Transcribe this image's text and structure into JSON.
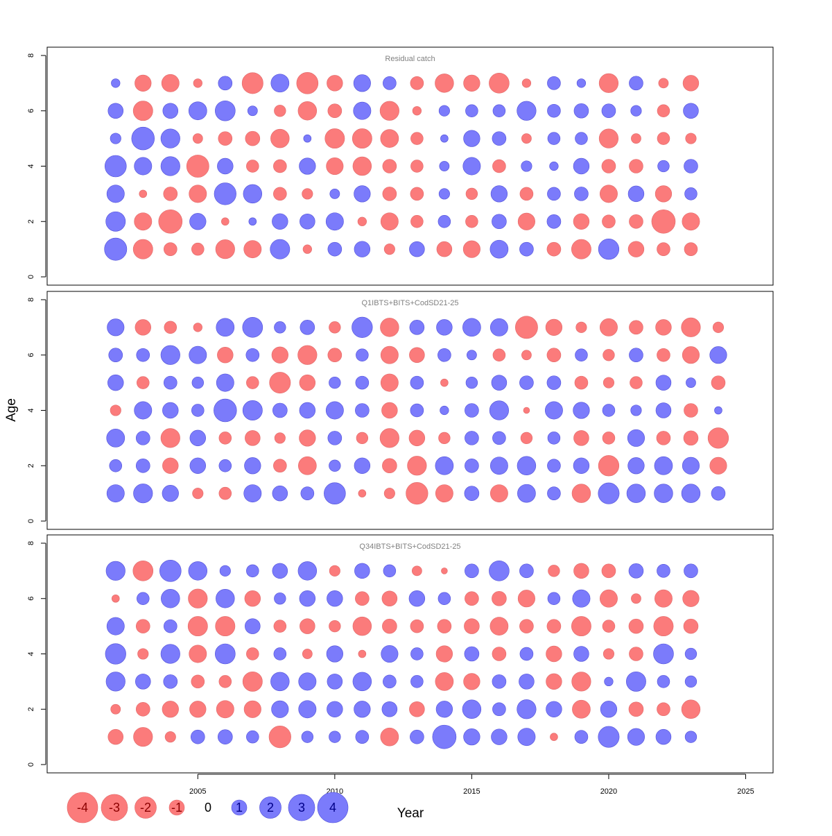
{
  "chart_data": {
    "type": "bubble",
    "xlabel": "Year",
    "ylabel": "Age",
    "xlim": [
      1999.5,
      2026
    ],
    "ylim": [
      -0.3,
      8.3
    ],
    "x_ticks": [
      2005,
      2010,
      2015,
      2020,
      2025
    ],
    "y_ticks": [
      0,
      2,
      4,
      6,
      8
    ],
    "colors": {
      "positive": "#7b7bfb",
      "negative": "#fb7b7b"
    },
    "grid": false,
    "panels": [
      {
        "title": "Residual catch",
        "years": [
          2002,
          2003,
          2004,
          2005,
          2006,
          2007,
          2008,
          2009,
          2010,
          2011,
          2012,
          2013,
          2014,
          2015,
          2016,
          2017,
          2018,
          2019,
          2020,
          2021,
          2022,
          2023
        ],
        "ages": [
          1,
          2,
          3,
          4,
          5,
          6,
          7
        ],
        "residuals": [
          [
            2.6,
            2.0,
            1.6,
            2.4,
            0.6,
            1.2,
            0.4
          ],
          [
            -2.0,
            -1.6,
            -0.3,
            1.6,
            2.7,
            -2.0,
            -1.4
          ],
          [
            -0.9,
            -2.9,
            -1.0,
            1.9,
            1.9,
            1.2,
            -1.6
          ],
          [
            -0.8,
            1.4,
            -1.6,
            -2.6,
            -0.5,
            1.7,
            -0.4
          ],
          [
            -1.9,
            -0.3,
            2.5,
            1.3,
            -1.0,
            2.1,
            1.0
          ],
          [
            -1.6,
            0.3,
            1.8,
            -0.8,
            -1.1,
            0.5,
            -2.3
          ],
          [
            2.0,
            1.3,
            -0.9,
            -0.9,
            -1.8,
            -0.7,
            1.7
          ],
          [
            -0.4,
            1.2,
            -0.6,
            1.4,
            0.3,
            -1.8,
            -2.4
          ],
          [
            1.0,
            1.6,
            0.5,
            -1.5,
            -2.0,
            -1.0,
            -1.3
          ],
          [
            1.3,
            -0.4,
            1.4,
            -1.8,
            -2.0,
            1.6,
            1.5
          ],
          [
            -0.6,
            -1.6,
            -1.0,
            -1.0,
            -1.7,
            -1.9,
            0.9
          ],
          [
            1.2,
            -0.8,
            -0.9,
            -0.8,
            -0.8,
            -0.4,
            -0.9
          ],
          [
            -1.2,
            0.8,
            0.6,
            0.5,
            0.3,
            0.6,
            -1.8
          ],
          [
            -1.5,
            -0.8,
            -0.7,
            1.6,
            1.4,
            0.8,
            -1.4
          ],
          [
            1.7,
            1.1,
            1.4,
            -0.9,
            1.0,
            0.8,
            -2.1
          ],
          [
            1.0,
            -1.5,
            -0.9,
            0.6,
            -0.5,
            1.9,
            -0.4
          ],
          [
            -1.0,
            1.0,
            0.9,
            0.4,
            0.8,
            0.9,
            0.9
          ],
          [
            -2.0,
            -1.3,
            1.0,
            1.3,
            0.8,
            1.1,
            0.4
          ],
          [
            2.2,
            -0.9,
            -1.6,
            -1.0,
            -1.9,
            1.0,
            -1.9
          ],
          [
            -1.3,
            -1.0,
            1.3,
            -1.0,
            -0.5,
            0.6,
            1.0
          ],
          [
            -0.9,
            -2.9,
            -1.4,
            0.7,
            -0.8,
            -0.8,
            -0.5
          ],
          [
            -0.9,
            -1.6,
            0.8,
            1.0,
            -0.6,
            1.2,
            -1.3
          ]
        ]
      },
      {
        "title": "Q1IBTS+BITS+CodSD21-25",
        "years": [
          2002,
          2003,
          2004,
          2005,
          2006,
          2007,
          2008,
          2009,
          2010,
          2011,
          2012,
          2013,
          2014,
          2015,
          2016,
          2017,
          2018,
          2019,
          2020,
          2021,
          2022,
          2023,
          2024
        ],
        "ages": [
          1,
          2,
          3,
          4,
          5,
          6,
          7
        ],
        "residuals": [
          [
            1.6,
            0.8,
            1.7,
            -0.6,
            1.3,
            1.0,
            1.5
          ],
          [
            1.9,
            1.0,
            1.0,
            1.6,
            -0.8,
            0.9,
            -1.3
          ],
          [
            1.4,
            -1.3,
            -1.9,
            1.3,
            0.9,
            1.9,
            -0.8
          ],
          [
            -0.6,
            1.3,
            1.3,
            0.8,
            0.7,
            1.6,
            -0.4
          ],
          [
            -0.8,
            0.8,
            -0.8,
            2.7,
            1.6,
            -1.3,
            1.7
          ],
          [
            1.6,
            1.4,
            -1.2,
            2.0,
            -0.8,
            0.9,
            2.1
          ],
          [
            1.2,
            -0.9,
            -0.6,
            1.1,
            -2.3,
            -1.4,
            0.7
          ],
          [
            0.9,
            -1.7,
            -1.4,
            1.3,
            -1.3,
            -1.9,
            1.1
          ],
          [
            2.4,
            0.7,
            1.0,
            1.6,
            0.7,
            -1.0,
            -0.7
          ],
          [
            -0.3,
            1.3,
            -0.7,
            1.0,
            0.9,
            0.8,
            2.2
          ],
          [
            -0.6,
            -1.1,
            -1.9,
            -1.3,
            -1.6,
            -1.6,
            -1.8
          ],
          [
            -2.5,
            -1.9,
            -1.3,
            0.9,
            0.9,
            -1.2,
            1.1
          ],
          [
            -1.6,
            1.7,
            -0.7,
            0.4,
            -0.3,
            0.9,
            1.3
          ],
          [
            1.1,
            1.0,
            1.0,
            1.0,
            0.7,
            0.5,
            1.7
          ],
          [
            -1.6,
            1.6,
            0.9,
            1.9,
            1.2,
            -0.8,
            1.6
          ],
          [
            1.7,
            1.8,
            -0.7,
            -0.2,
            1.0,
            -0.5,
            -2.6
          ],
          [
            0.9,
            0.9,
            0.8,
            1.6,
            1.0,
            -1.0,
            -1.4
          ],
          [
            -1.8,
            1.3,
            -1.2,
            1.4,
            -0.9,
            0.8,
            -0.6
          ],
          [
            2.3,
            -2.2,
            -0.8,
            0.8,
            -0.6,
            -0.7,
            -1.6
          ],
          [
            1.8,
            1.4,
            1.5,
            0.6,
            -0.8,
            1.0,
            -1.0
          ],
          [
            1.8,
            1.7,
            -1.0,
            1.2,
            1.2,
            -0.9,
            -1.3
          ],
          [
            1.8,
            1.5,
            -1.1,
            -1.0,
            0.5,
            -1.5,
            -1.9
          ],
          [
            1.0,
            -1.5,
            -2.2,
            0.3,
            -1.0,
            1.5,
            -0.6
          ]
        ]
      },
      {
        "title": "Q34IBTS+BITS+CodSD21-25",
        "years": [
          2002,
          2003,
          2004,
          2005,
          2006,
          2007,
          2008,
          2009,
          2010,
          2011,
          2012,
          2013,
          2014,
          2015,
          2016,
          2017,
          2018,
          2019,
          2020,
          2021,
          2022,
          2023
        ],
        "ages": [
          1,
          2,
          3,
          4,
          5,
          6,
          7
        ],
        "residuals": [
          [
            -1.2,
            -0.5,
            1.9,
            2.2,
            1.6,
            -0.3,
            1.9
          ],
          [
            -1.9,
            -1.0,
            1.2,
            -0.6,
            -1.0,
            0.8,
            -2.1
          ],
          [
            -0.6,
            -1.4,
            1.0,
            1.9,
            0.9,
            1.8,
            2.4
          ],
          [
            1.0,
            -1.4,
            -0.9,
            -1.6,
            -2.0,
            -1.9,
            1.8
          ],
          [
            1.1,
            -1.6,
            -0.8,
            2.1,
            -2.0,
            1.8,
            0.6
          ],
          [
            0.8,
            -1.5,
            -2.0,
            -0.8,
            1.2,
            -1.3,
            0.8
          ],
          [
            -2.5,
            1.5,
            1.8,
            0.8,
            -0.8,
            0.7,
            1.2
          ],
          [
            0.7,
            1.6,
            1.6,
            -0.5,
            -1.2,
            1.3,
            1.8
          ],
          [
            0.7,
            1.3,
            1.2,
            1.4,
            -0.7,
            1.3,
            -0.6
          ],
          [
            0.9,
            1.4,
            1.8,
            -0.3,
            -1.8,
            -1.0,
            1.2
          ],
          [
            -1.7,
            1.2,
            0.9,
            1.5,
            -1.1,
            -1.2,
            0.8
          ],
          [
            1.0,
            -1.2,
            0.8,
            0.8,
            -0.9,
            1.3,
            -0.5
          ],
          [
            2.9,
            1.4,
            -1.7,
            -1.4,
            -1.0,
            0.8,
            -0.2
          ],
          [
            1.4,
            1.8,
            -1.4,
            1.1,
            -1.2,
            -1.0,
            1.0
          ],
          [
            1.3,
            0.9,
            1.0,
            -1.0,
            -1.7,
            -1.1,
            2.1
          ],
          [
            1.6,
            1.9,
            1.2,
            0.9,
            -1.0,
            -1.5,
            1.0
          ],
          [
            -0.3,
            1.3,
            -1.3,
            -1.3,
            -1.0,
            0.8,
            -0.7
          ],
          [
            0.9,
            -1.7,
            -1.9,
            1.2,
            -2.0,
            1.6,
            -1.2
          ],
          [
            2.3,
            1.4,
            0.4,
            -0.6,
            -0.8,
            -1.6,
            -1.0
          ],
          [
            1.5,
            -1.1,
            2.0,
            -1.0,
            -1.1,
            -0.5,
            1.1
          ],
          [
            1.2,
            -0.9,
            0.8,
            2.1,
            -2.0,
            -1.6,
            0.9
          ],
          [
            0.7,
            -1.8,
            0.7,
            0.7,
            -1.1,
            -1.4,
            1.0
          ]
        ]
      }
    ],
    "legend": {
      "placement": "bottom-left",
      "entries": [
        "-4",
        "-3",
        "-2",
        "-1",
        "0",
        "1",
        "2",
        "3",
        "4"
      ]
    }
  }
}
